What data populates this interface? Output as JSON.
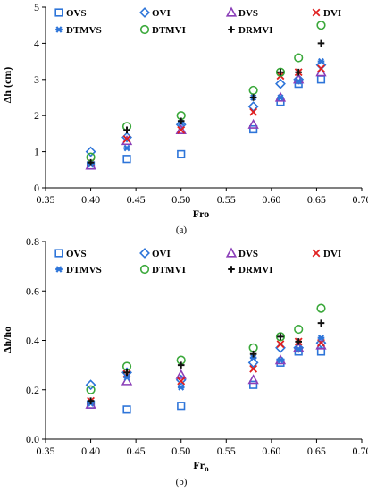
{
  "chart_data": [
    {
      "type": "scatter",
      "caption": "(a)",
      "title": "",
      "xlabel": "Fro",
      "ylabel": "Δh (cm)",
      "xlim": [
        0.35,
        0.7
      ],
      "ylim": [
        0,
        5
      ],
      "xticks": [
        "0.35",
        "0.40",
        "0.45",
        "0.50",
        "0.55",
        "0.60",
        "0.65",
        "0.70"
      ],
      "yticks": [
        "0",
        "1",
        "2",
        "3",
        "4",
        "5"
      ],
      "grid": false,
      "legend": "top",
      "series": [
        {
          "name": "OVS",
          "marker": "square",
          "color": "#2e75d9",
          "x": [
            0.4,
            0.44,
            0.5,
            0.58,
            0.61,
            0.63,
            0.655
          ],
          "y": [
            0.62,
            0.8,
            0.93,
            1.62,
            2.38,
            2.88,
            3.0
          ]
        },
        {
          "name": "OVI",
          "marker": "diamond",
          "color": "#2e75d9",
          "x": [
            0.4,
            0.44,
            0.5,
            0.58,
            0.61,
            0.63,
            0.655
          ],
          "y": [
            1.0,
            1.4,
            1.75,
            2.25,
            2.88,
            3.0,
            3.4
          ]
        },
        {
          "name": "DVS",
          "marker": "triangle",
          "color": "#8b3fb8",
          "x": [
            0.4,
            0.44,
            0.5,
            0.58,
            0.61,
            0.63,
            0.655
          ],
          "y": [
            0.62,
            1.3,
            1.6,
            1.75,
            2.5,
            3.0,
            3.2
          ]
        },
        {
          "name": "DVI",
          "marker": "x",
          "color": "#e02020",
          "x": [
            0.4,
            0.44,
            0.5,
            0.58,
            0.61,
            0.63,
            0.655
          ],
          "y": [
            0.7,
            1.35,
            1.6,
            2.1,
            3.1,
            3.2,
            3.3
          ]
        },
        {
          "name": "DTMVS",
          "marker": "asterisk",
          "color": "#2e75d9",
          "x": [
            0.4,
            0.44,
            0.5,
            0.58,
            0.61,
            0.63,
            0.655
          ],
          "y": [
            0.65,
            1.1,
            1.8,
            2.5,
            2.5,
            2.95,
            3.5
          ]
        },
        {
          "name": "DTMVI",
          "marker": "circle",
          "color": "#3aa83a",
          "x": [
            0.4,
            0.44,
            0.5,
            0.58,
            0.61,
            0.63,
            0.655
          ],
          "y": [
            0.85,
            1.7,
            2.0,
            2.7,
            3.2,
            3.6,
            4.5
          ]
        },
        {
          "name": "DRMVI",
          "marker": "plus",
          "color": "#111111",
          "x": [
            0.4,
            0.44,
            0.5,
            0.58,
            0.61,
            0.63,
            0.655
          ],
          "y": [
            0.7,
            1.6,
            1.85,
            2.5,
            3.2,
            3.2,
            4.0
          ]
        }
      ]
    },
    {
      "type": "scatter",
      "caption": "(b)",
      "title": "",
      "xlabel": "Fr",
      "xlabel_sub": "o",
      "ylabel": "Δh/ho",
      "xlim": [
        0.35,
        0.7
      ],
      "ylim": [
        0,
        0.8
      ],
      "xticks": [
        "0.35",
        "0.40",
        "0.45",
        "0.50",
        "0.55",
        "0.60",
        "0.65",
        "0.70"
      ],
      "yticks": [
        "0.0",
        "0.2",
        "0.4",
        "0.6",
        "0.8"
      ],
      "grid": false,
      "legend": "top",
      "series": [
        {
          "name": "OVS",
          "marker": "square",
          "color": "#2e75d9",
          "x": [
            0.4,
            0.44,
            0.5,
            0.58,
            0.61,
            0.63,
            0.655
          ],
          "y": [
            0.14,
            0.12,
            0.135,
            0.22,
            0.31,
            0.355,
            0.355
          ]
        },
        {
          "name": "OVI",
          "marker": "diamond",
          "color": "#2e75d9",
          "x": [
            0.4,
            0.44,
            0.5,
            0.58,
            0.61,
            0.63,
            0.655
          ],
          "y": [
            0.22,
            0.27,
            0.24,
            0.31,
            0.37,
            0.37,
            0.39
          ]
        },
        {
          "name": "DVS",
          "marker": "triangle",
          "color": "#8b3fb8",
          "x": [
            0.4,
            0.44,
            0.5,
            0.58,
            0.61,
            0.63,
            0.655
          ],
          "y": [
            0.14,
            0.235,
            0.26,
            0.24,
            0.32,
            0.37,
            0.38
          ]
        },
        {
          "name": "DVI",
          "marker": "x",
          "color": "#e02020",
          "x": [
            0.4,
            0.44,
            0.5,
            0.58,
            0.61,
            0.63,
            0.655
          ],
          "y": [
            0.155,
            0.265,
            0.235,
            0.285,
            0.385,
            0.395,
            0.39
          ]
        },
        {
          "name": "DTMVS",
          "marker": "asterisk",
          "color": "#2e75d9",
          "x": [
            0.4,
            0.44,
            0.5,
            0.58,
            0.61,
            0.63,
            0.655
          ],
          "y": [
            0.145,
            0.25,
            0.21,
            0.33,
            0.32,
            0.365,
            0.41
          ]
        },
        {
          "name": "DTMVI",
          "marker": "circle",
          "color": "#3aa83a",
          "x": [
            0.4,
            0.44,
            0.5,
            0.58,
            0.61,
            0.63,
            0.655
          ],
          "y": [
            0.2,
            0.295,
            0.32,
            0.37,
            0.415,
            0.445,
            0.53
          ]
        },
        {
          "name": "DRMVI",
          "marker": "plus",
          "color": "#111111",
          "x": [
            0.4,
            0.44,
            0.5,
            0.58,
            0.61,
            0.63,
            0.655
          ],
          "y": [
            0.155,
            0.27,
            0.3,
            0.345,
            0.415,
            0.395,
            0.47
          ]
        }
      ]
    }
  ]
}
